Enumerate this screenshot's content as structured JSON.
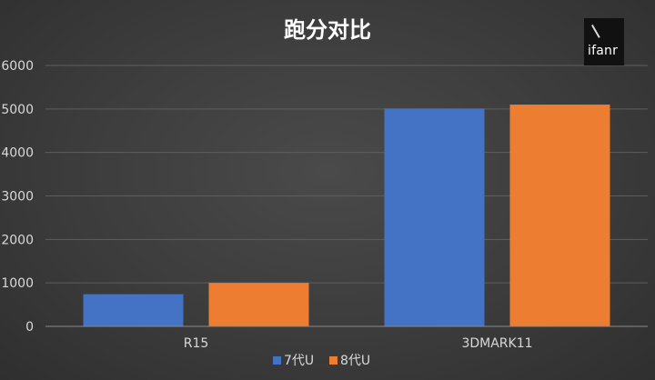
{
  "chart_data": {
    "type": "bar",
    "title": "跑分对比",
    "categories": [
      "R15",
      "3DMARK11"
    ],
    "series": [
      {
        "name": "7代U",
        "values": [
          740,
          5010
        ],
        "color": "#4472c4"
      },
      {
        "name": "8代U",
        "values": [
          1000,
          5100
        ],
        "color": "#ed7d31"
      }
    ],
    "ylim": [
      0,
      6000
    ],
    "yticks": [
      0,
      1000,
      2000,
      3000,
      4000,
      5000,
      6000
    ],
    "grid": true,
    "legend": "bottom",
    "xlabel": "",
    "ylabel": ""
  },
  "logo": {
    "text": "ifanr",
    "icon": "slash-mark-icon"
  },
  "colors": {
    "background": "#3e3e3e",
    "gridline": "#5e5e5e",
    "axis_text": "#d9d9d9",
    "title_text": "#ffffff"
  }
}
